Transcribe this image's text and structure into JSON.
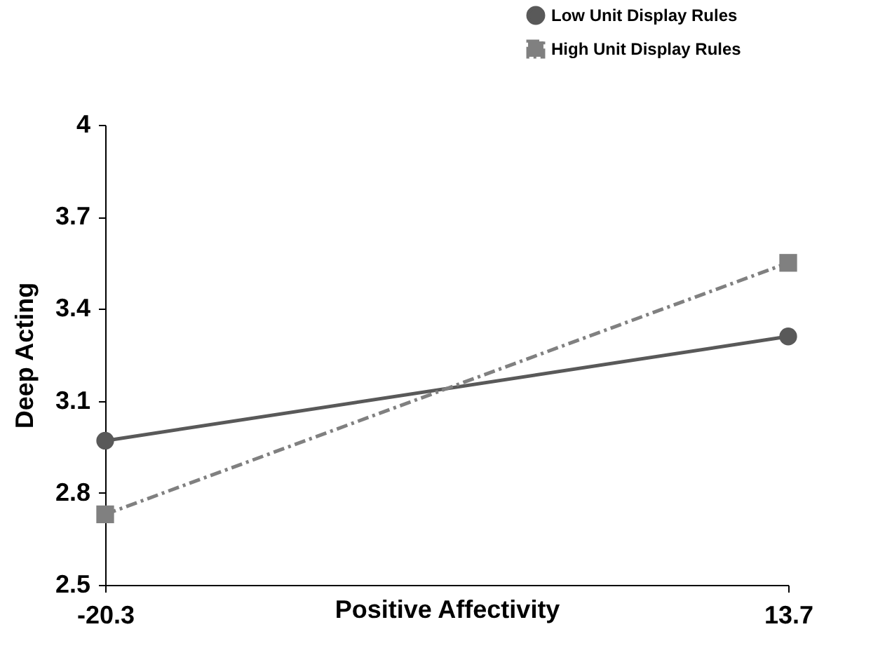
{
  "chart_data": {
    "type": "line",
    "xlabel": "Positive Affectivity",
    "ylabel": "Deep Acting",
    "x": [
      -20.3,
      13.7
    ],
    "xlim": [
      -20.3,
      13.7
    ],
    "xticks": [
      -20.3,
      13.7
    ],
    "ylim": [
      2.5,
      4
    ],
    "yticks": [
      2.5,
      2.8,
      3.1,
      3.4,
      3.7,
      4
    ],
    "grid": false,
    "legend": "top right",
    "series": [
      {
        "name": "Low Unit Display Rules",
        "color": "#595959",
        "values": [
          2.97,
          3.31
        ],
        "marker": "circle",
        "line_style": "solid"
      },
      {
        "name": "High Unit Display Rules",
        "color": "#808080",
        "values": [
          2.73,
          3.55
        ],
        "marker": "square",
        "line_style": "dashed"
      }
    ]
  }
}
